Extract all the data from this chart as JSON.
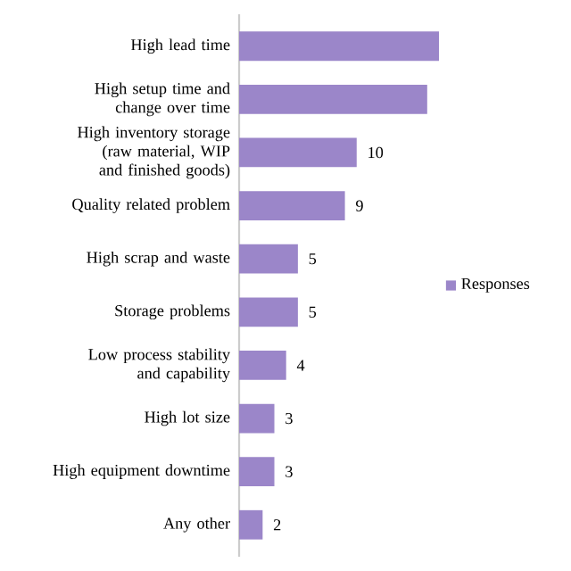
{
  "chart_data": {
    "type": "bar",
    "orientation": "horizontal",
    "categories": [
      "High lead time",
      "High setup time and change over time",
      "High inventory storage (raw material, WIP and finished goods)",
      "Quality related problem",
      "High scrap and waste",
      "Storage problems",
      "Low process stability and capability",
      "High lot size",
      "High equipment downtime",
      "Any other"
    ],
    "series": [
      {
        "name": "Responses",
        "color": "#9b86c9",
        "values": [
          17,
          16,
          10,
          9,
          5,
          5,
          4,
          3,
          3,
          2
        ],
        "value_labels": [
          null,
          null,
          "10",
          "9",
          "5",
          "5",
          "4",
          "3",
          "3",
          "2"
        ]
      }
    ],
    "legend": "right",
    "tick_labels": "y"
  }
}
